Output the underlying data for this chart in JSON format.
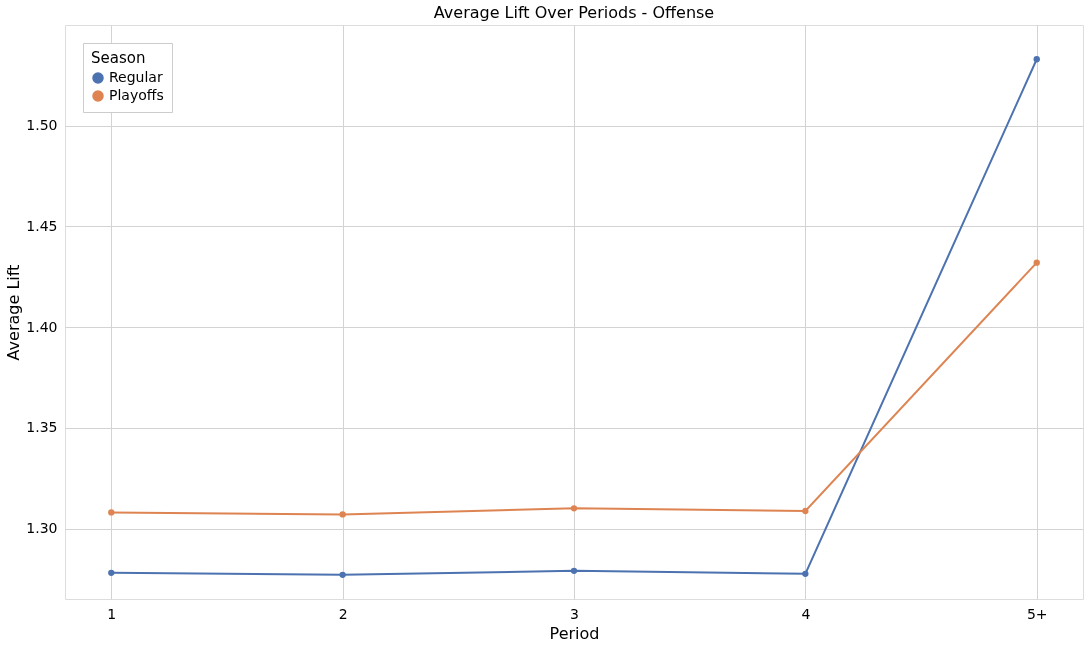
{
  "chart_data": {
    "type": "line",
    "title": "Average Lift Over Periods - Offense",
    "xlabel": "Period",
    "ylabel": "Average Lift",
    "legend_title": "Season",
    "categories": [
      "1",
      "2",
      "3",
      "4",
      "5+"
    ],
    "series": [
      {
        "name": "Regular",
        "color": "#4c72b0",
        "values": [
          1.278,
          1.277,
          1.279,
          1.2775,
          1.533
        ]
      },
      {
        "name": "Playoffs",
        "color": "#dd8452",
        "values": [
          1.308,
          1.307,
          1.31,
          1.3087,
          1.432
        ]
      }
    ],
    "ylim": [
      1.265,
      1.55
    ],
    "yticks": [
      {
        "value": 1.3,
        "label": "1.30"
      },
      1.35,
      {
        "value": 1.4,
        "label": "1.40"
      },
      1.45,
      {
        "value": 1.5,
        "label": "1.50"
      }
    ],
    "grid": true,
    "legend": "top left",
    "marker": "circle",
    "line_style": "solid"
  }
}
